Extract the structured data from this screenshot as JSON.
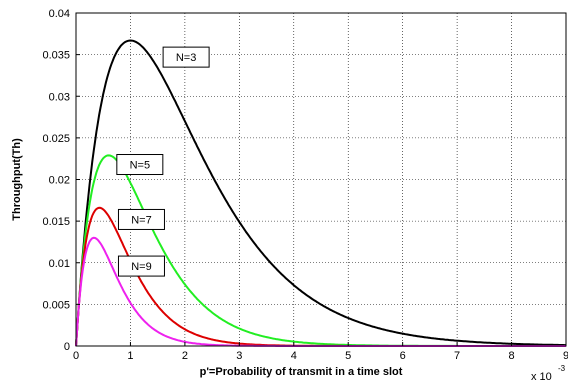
{
  "chart_data": {
    "type": "line",
    "xlabel": "p'=Probability of transmit in a time slot",
    "ylabel": "Throughput(Th)",
    "x_multiplier_label": "x 10",
    "x_multiplier_exponent": "-3",
    "xlim": [
      0,
      9
    ],
    "ylim": [
      0,
      0.04
    ],
    "xticks": [
      "0",
      "1",
      "2",
      "3",
      "4",
      "5",
      "6",
      "7",
      "8",
      "9"
    ],
    "yticks": [
      "0",
      "0.005",
      "0.01",
      "0.015",
      "0.02",
      "0.025",
      "0.03",
      "0.035",
      "0.04"
    ],
    "grid": true,
    "series": [
      {
        "name": "N=3",
        "color": "#000000",
        "peak_x": 1.0,
        "peak_y": 0.0367
      },
      {
        "name": "N=5",
        "color": "#22ee22",
        "peak_x": 0.6,
        "peak_y": 0.0229
      },
      {
        "name": "N=7",
        "color": "#dd0000",
        "peak_x": 0.43,
        "peak_y": 0.0166
      },
      {
        "name": "N=9",
        "color": "#ee22ee",
        "peak_x": 0.33,
        "peak_y": 0.013
      }
    ],
    "annotations": [
      {
        "text": "N=3",
        "x": 1.6,
        "y": 0.0347
      },
      {
        "text": "N=5",
        "x": 0.75,
        "y": 0.0218
      },
      {
        "text": "N=7",
        "x": 0.78,
        "y": 0.0152
      },
      {
        "text": "N=9",
        "x": 0.78,
        "y": 0.0096
      }
    ]
  }
}
